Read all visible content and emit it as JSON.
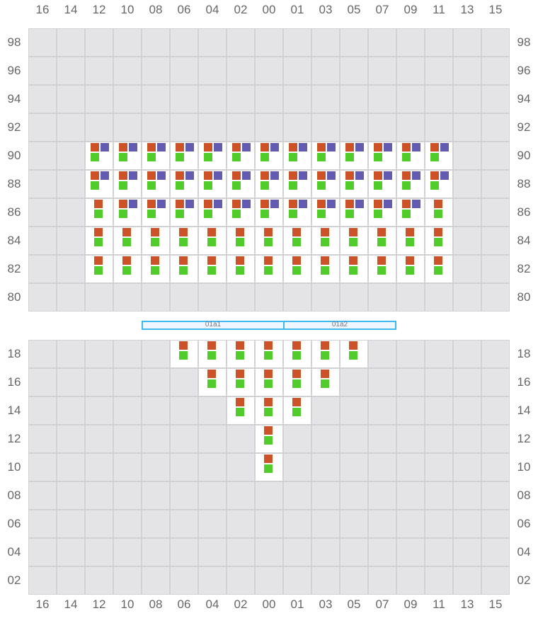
{
  "columns": [
    "16",
    "14",
    "12",
    "10",
    "08",
    "06",
    "04",
    "02",
    "00",
    "01",
    "03",
    "05",
    "07",
    "09",
    "11",
    "13",
    "15"
  ],
  "colors": {
    "orange": "#cc5228",
    "purple": "#645aaf",
    "green": "#52cc2a",
    "grid": "#e4e4e6",
    "bar_border": "#3fb8ec"
  },
  "top_section": {
    "rows": [
      {
        "label": "98",
        "occupied": [],
        "purple": []
      },
      {
        "label": "96",
        "occupied": [],
        "purple": []
      },
      {
        "label": "94",
        "occupied": [],
        "purple": []
      },
      {
        "label": "92",
        "occupied": [],
        "purple": []
      },
      {
        "label": "90",
        "occupied": [
          "12",
          "10",
          "08",
          "06",
          "04",
          "02",
          "00",
          "01",
          "03",
          "05",
          "07",
          "09",
          "11"
        ],
        "purple": [
          "12",
          "10",
          "08",
          "06",
          "04",
          "02",
          "00",
          "01",
          "03",
          "05",
          "07",
          "09",
          "11"
        ]
      },
      {
        "label": "88",
        "occupied": [
          "12",
          "10",
          "08",
          "06",
          "04",
          "02",
          "00",
          "01",
          "03",
          "05",
          "07",
          "09",
          "11"
        ],
        "purple": [
          "12",
          "10",
          "08",
          "06",
          "04",
          "02",
          "00",
          "01",
          "03",
          "05",
          "07",
          "09",
          "11"
        ]
      },
      {
        "label": "86",
        "occupied": [
          "12",
          "10",
          "08",
          "06",
          "04",
          "02",
          "00",
          "01",
          "03",
          "05",
          "07",
          "09",
          "11"
        ],
        "purple": [
          "10",
          "08",
          "06",
          "04",
          "02",
          "00",
          "01",
          "03",
          "05",
          "07",
          "09"
        ]
      },
      {
        "label": "84",
        "occupied": [
          "12",
          "10",
          "08",
          "06",
          "04",
          "02",
          "00",
          "01",
          "03",
          "05",
          "07",
          "09",
          "11"
        ],
        "purple": []
      },
      {
        "label": "82",
        "occupied": [
          "12",
          "10",
          "08",
          "06",
          "04",
          "02",
          "00",
          "01",
          "03",
          "05",
          "07",
          "09",
          "11"
        ],
        "purple": []
      },
      {
        "label": "80",
        "occupied": [],
        "purple": []
      }
    ]
  },
  "divider": [
    {
      "label": "01a1",
      "from": "08",
      "to": "00"
    },
    {
      "label": "01a2",
      "from": "01",
      "to": "07"
    }
  ],
  "bottom_section": {
    "rows": [
      {
        "label": "18",
        "occupied": [
          "06",
          "04",
          "02",
          "00",
          "01",
          "03",
          "05"
        ],
        "purple": []
      },
      {
        "label": "16",
        "occupied": [
          "04",
          "02",
          "00",
          "01",
          "03"
        ],
        "purple": []
      },
      {
        "label": "14",
        "occupied": [
          "02",
          "00",
          "01"
        ],
        "purple": []
      },
      {
        "label": "12",
        "occupied": [
          "00"
        ],
        "purple": []
      },
      {
        "label": "10",
        "occupied": [
          "00"
        ],
        "purple": []
      },
      {
        "label": "08",
        "occupied": [],
        "purple": []
      },
      {
        "label": "06",
        "occupied": [],
        "purple": []
      },
      {
        "label": "04",
        "occupied": [],
        "purple": []
      },
      {
        "label": "02",
        "occupied": [],
        "purple": []
      }
    ]
  }
}
